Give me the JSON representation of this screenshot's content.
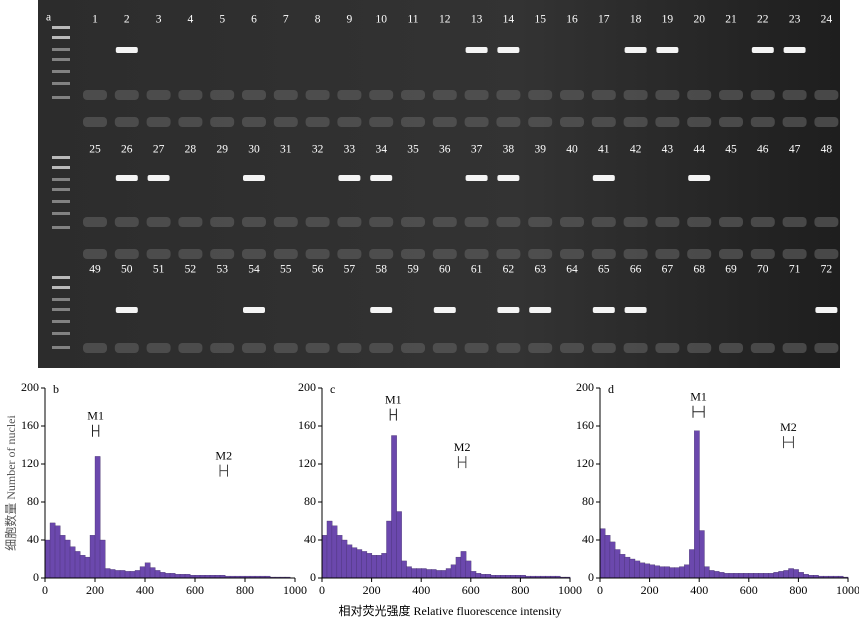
{
  "gel": {
    "panel": "a",
    "rows": [
      [
        {
          "label": "1",
          "band": false
        },
        {
          "label": "2",
          "band": true
        },
        {
          "label": "3",
          "band": false
        },
        {
          "label": "4",
          "band": false
        },
        {
          "label": "5",
          "band": false
        },
        {
          "label": "6",
          "band": false
        },
        {
          "label": "7",
          "band": false
        },
        {
          "label": "8",
          "band": false
        },
        {
          "label": "9",
          "band": false
        },
        {
          "label": "10",
          "band": false
        },
        {
          "label": "11",
          "band": false
        },
        {
          "label": "12",
          "band": false
        },
        {
          "label": "13",
          "band": true
        },
        {
          "label": "14",
          "band": true
        },
        {
          "label": "15",
          "band": false
        },
        {
          "label": "16",
          "band": false
        },
        {
          "label": "17",
          "band": false
        },
        {
          "label": "18",
          "band": true
        },
        {
          "label": "19",
          "band": true
        },
        {
          "label": "20",
          "band": false
        },
        {
          "label": "21",
          "band": false
        },
        {
          "label": "22",
          "band": true
        },
        {
          "label": "23",
          "band": true
        },
        {
          "label": "24",
          "band": false
        }
      ],
      [
        {
          "label": "25",
          "band": false
        },
        {
          "label": "26",
          "band": true
        },
        {
          "label": "27",
          "band": true
        },
        {
          "label": "28",
          "band": false
        },
        {
          "label": "29",
          "band": false
        },
        {
          "label": "30",
          "band": true
        },
        {
          "label": "31",
          "band": false
        },
        {
          "label": "32",
          "band": false
        },
        {
          "label": "33",
          "band": true
        },
        {
          "label": "34",
          "band": true
        },
        {
          "label": "35",
          "band": false
        },
        {
          "label": "36",
          "band": false
        },
        {
          "label": "37",
          "band": true
        },
        {
          "label": "38",
          "band": true
        },
        {
          "label": "39",
          "band": false
        },
        {
          "label": "40",
          "band": false
        },
        {
          "label": "41",
          "band": true
        },
        {
          "label": "42",
          "band": false
        },
        {
          "label": "43",
          "band": false
        },
        {
          "label": "44",
          "band": true
        },
        {
          "label": "45",
          "band": false
        },
        {
          "label": "46",
          "band": false
        },
        {
          "label": "47",
          "band": false
        },
        {
          "label": "48",
          "band": false
        }
      ],
      [
        {
          "label": "49",
          "band": false
        },
        {
          "label": "50",
          "band": true
        },
        {
          "label": "51",
          "band": false
        },
        {
          "label": "52",
          "band": false
        },
        {
          "label": "53",
          "band": false
        },
        {
          "label": "54",
          "band": true
        },
        {
          "label": "55",
          "band": false
        },
        {
          "label": "56",
          "band": false
        },
        {
          "label": "57",
          "band": false
        },
        {
          "label": "58",
          "band": true
        },
        {
          "label": "59",
          "band": false
        },
        {
          "label": "60",
          "band": true
        },
        {
          "label": "61",
          "band": false
        },
        {
          "label": "62",
          "band": true
        },
        {
          "label": "63",
          "band": true
        },
        {
          "label": "64",
          "band": false
        },
        {
          "label": "65",
          "band": true
        },
        {
          "label": "66",
          "band": true
        },
        {
          "label": "67",
          "band": false
        },
        {
          "label": "68",
          "band": false
        },
        {
          "label": "69",
          "band": false
        },
        {
          "label": "70",
          "band": false
        },
        {
          "label": "71",
          "band": false
        },
        {
          "label": "72",
          "band": true
        }
      ]
    ]
  },
  "y_label": "细胞数量 Number of nuclei",
  "x_label": "相对荧光强度 Relative fluorescence intensity",
  "chart_data": [
    {
      "type": "histogram",
      "panel": "b",
      "color": "#6b48ad",
      "bins": [
        0,
        20,
        40,
        60,
        80,
        100,
        120,
        140,
        160,
        180,
        200,
        220,
        240,
        260,
        280,
        300,
        320,
        340,
        360,
        380,
        400,
        420,
        440,
        460,
        480,
        500,
        520,
        540,
        560,
        580,
        600,
        620,
        640,
        660,
        680,
        700,
        720,
        740,
        760,
        780,
        800,
        820,
        840,
        860,
        880,
        900,
        920,
        940,
        960,
        980,
        1000
      ],
      "values": [
        40,
        58,
        55,
        45,
        40,
        33,
        28,
        24,
        22,
        45,
        128,
        40,
        10,
        9,
        8,
        8,
        7,
        7,
        8,
        12,
        16,
        11,
        8,
        6,
        5,
        5,
        4,
        4,
        4,
        3,
        3,
        3,
        3,
        3,
        3,
        3,
        2,
        2,
        2,
        2,
        2,
        2,
        2,
        2,
        2,
        1,
        1,
        1,
        1,
        0
      ],
      "xlim": [
        0,
        1000
      ],
      "xticks": [
        0,
        200,
        400,
        600,
        800,
        1000
      ],
      "ylim": [
        0,
        200
      ],
      "yticks": [
        0,
        40,
        80,
        120,
        160,
        200
      ],
      "markers": [
        {
          "label": "M1",
          "x": [
            190,
            215
          ],
          "y": 155
        },
        {
          "label": "M2",
          "x": [
            700,
            730
          ],
          "y": 113
        }
      ]
    },
    {
      "type": "histogram",
      "panel": "c",
      "color": "#6b48ad",
      "bins": [
        0,
        20,
        40,
        60,
        80,
        100,
        120,
        140,
        160,
        180,
        200,
        220,
        240,
        260,
        280,
        300,
        320,
        340,
        360,
        380,
        400,
        420,
        440,
        460,
        480,
        500,
        520,
        540,
        560,
        580,
        600,
        620,
        640,
        660,
        680,
        700,
        720,
        740,
        760,
        780,
        800,
        820,
        840,
        860,
        880,
        900,
        920,
        940,
        960,
        980,
        1000
      ],
      "values": [
        45,
        60,
        55,
        45,
        40,
        35,
        32,
        30,
        28,
        26,
        24,
        24,
        26,
        60,
        150,
        70,
        18,
        12,
        10,
        10,
        10,
        9,
        9,
        8,
        8,
        10,
        14,
        22,
        28,
        18,
        7,
        5,
        4,
        4,
        3,
        3,
        3,
        3,
        3,
        3,
        3,
        2,
        2,
        2,
        2,
        2,
        2,
        2,
        1,
        1
      ],
      "xlim": [
        0,
        1000
      ],
      "xticks": [
        0,
        200,
        400,
        600,
        800,
        1000
      ],
      "ylim": [
        0,
        200
      ],
      "yticks": [
        0,
        40,
        80,
        120,
        160,
        200
      ],
      "markers": [
        {
          "label": "M1",
          "x": [
            275,
            300
          ],
          "y": 172
        },
        {
          "label": "M2",
          "x": [
            550,
            580
          ],
          "y": 122
        }
      ]
    },
    {
      "type": "histogram",
      "panel": "d",
      "color": "#6b48ad",
      "bins": [
        0,
        20,
        40,
        60,
        80,
        100,
        120,
        140,
        160,
        180,
        200,
        220,
        240,
        260,
        280,
        300,
        320,
        340,
        360,
        380,
        400,
        420,
        440,
        460,
        480,
        500,
        520,
        540,
        560,
        580,
        600,
        620,
        640,
        660,
        680,
        700,
        720,
        740,
        760,
        780,
        800,
        820,
        840,
        860,
        880,
        900,
        920,
        940,
        960,
        980,
        1000
      ],
      "values": [
        52,
        45,
        38,
        30,
        25,
        22,
        20,
        18,
        16,
        15,
        14,
        13,
        12,
        12,
        11,
        11,
        12,
        14,
        30,
        155,
        50,
        12,
        8,
        7,
        6,
        5,
        5,
        5,
        5,
        5,
        5,
        5,
        5,
        5,
        5,
        6,
        7,
        8,
        10,
        9,
        6,
        4,
        3,
        3,
        2,
        2,
        2,
        2,
        2,
        1
      ],
      "xlim": [
        0,
        1000
      ],
      "xticks": [
        0,
        200,
        400,
        600,
        800,
        1000
      ],
      "ylim": [
        0,
        200
      ],
      "yticks": [
        0,
        40,
        80,
        120,
        160,
        200
      ],
      "markers": [
        {
          "label": "M1",
          "x": [
            375,
            420
          ],
          "y": 175
        },
        {
          "label": "M2",
          "x": [
            740,
            780
          ],
          "y": 143
        }
      ]
    }
  ]
}
